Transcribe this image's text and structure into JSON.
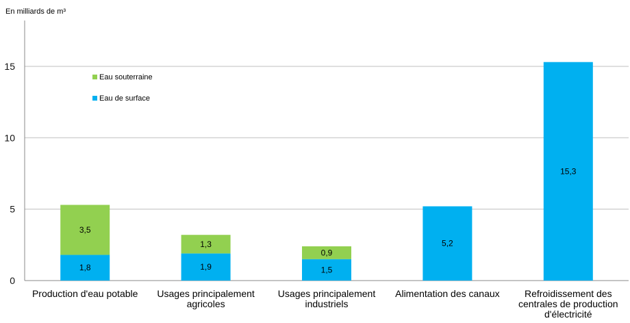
{
  "chart_data": {
    "type": "bar",
    "stacked": true,
    "unit_label": "En milliards de m³",
    "categories": [
      [
        "Production d'eau potable"
      ],
      [
        "Usages principalement",
        "agricoles"
      ],
      [
        "Usages principalement",
        "industriels"
      ],
      [
        "Alimentation des canaux"
      ],
      [
        "Refroidissement des",
        "centrales de production",
        "d'électricité"
      ]
    ],
    "series": [
      {
        "name": "Eau de surface",
        "color": "#00b0f0",
        "values": [
          1.8,
          1.9,
          1.5,
          5.2,
          15.3
        ],
        "labels": [
          "1,8",
          "1,9",
          "1,5",
          "5,2",
          "15,3"
        ]
      },
      {
        "name": "Eau souterraine",
        "color": "#92d050",
        "values": [
          3.5,
          1.3,
          0.9,
          0,
          0
        ],
        "labels": [
          "3,5",
          "1,3",
          "0,9",
          "",
          ""
        ]
      }
    ],
    "legend_order": [
      "Eau souterraine",
      "Eau de surface"
    ],
    "legend_position": "top-left",
    "ylim": [
      0,
      17.5
    ],
    "yticks": [
      0,
      5,
      10,
      15
    ],
    "ytick_labels": [
      "0",
      "5",
      "10",
      "15"
    ],
    "grid": true,
    "grid_color": "#bfbfbf"
  }
}
